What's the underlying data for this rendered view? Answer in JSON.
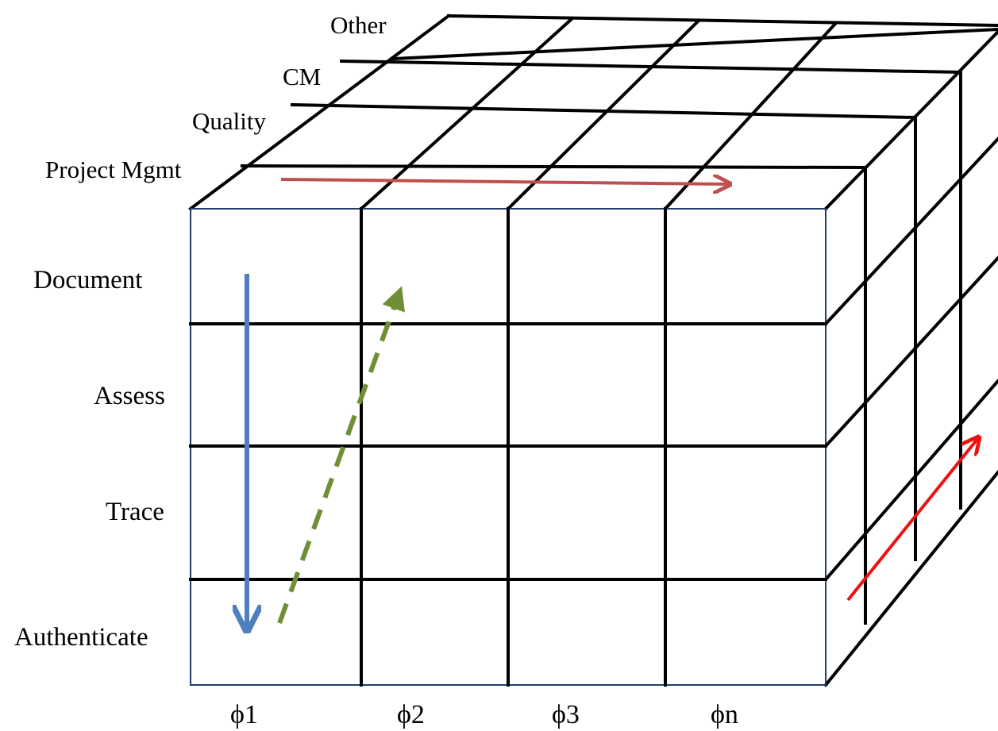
{
  "diagram": {
    "front_rows": [
      "Document",
      "Assess",
      "Trace",
      "Authenticate"
    ],
    "front_columns": [
      "ϕ1",
      "ϕ2",
      "ϕ3",
      "ϕn"
    ],
    "depth_layers": [
      "Project Mgmt",
      "Quality",
      "CM",
      "Other"
    ],
    "arrow_colors": {
      "blue": "#4f7fc0",
      "green_dashed": "#6e8f36",
      "top_dark_red": "#c05050",
      "side_red": "#ee1111"
    }
  }
}
